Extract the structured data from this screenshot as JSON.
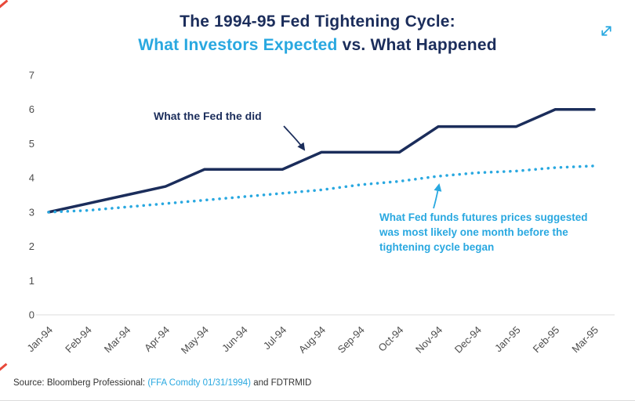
{
  "title": {
    "line1": "The 1994-95 Fed Tightening Cycle:",
    "line2_highlight": "What Investors Expected",
    "line2_rest": " vs. What Happened"
  },
  "colors": {
    "navy": "#1b2d5b",
    "blue": "#29a8e0",
    "tick_text": "#4d4d4d",
    "source_text": "#333333",
    "red_mark": "#e8493a",
    "axis_line": "#dcdcdc"
  },
  "icons": {
    "expand": "expand-arrows-icon"
  },
  "annotations": {
    "fed": "What the Fed the did",
    "futures_line1": "What Fed funds futures prices suggested",
    "futures_line2": "was most likely one month before the",
    "futures_line3": "tightening cycle began"
  },
  "source": {
    "prefix": "Source: Bloomberg Professional: ",
    "link": "(FFA Comdty 01/31/1994)",
    "suffix": " and FDTRMID"
  },
  "chart_data": {
    "type": "line",
    "title": "The 1994-95 Fed Tightening Cycle: What Investors Expected vs. What Happened",
    "categories": [
      "Jan-94",
      "Feb-94",
      "Mar-94",
      "Apr-94",
      "May-94",
      "Jun-94",
      "Jul-94",
      "Aug-94",
      "Sep-94",
      "Oct-94",
      "Nov-94",
      "Dec-94",
      "Jan-95",
      "Feb-95",
      "Mar-95"
    ],
    "series": [
      {
        "id": "fed-actual",
        "name": "What the Fed the did",
        "style": "solid",
        "color": "#1b2d5b",
        "values": [
          3.0,
          3.25,
          3.5,
          3.75,
          4.25,
          4.25,
          4.25,
          4.75,
          4.75,
          4.75,
          5.5,
          5.5,
          5.5,
          6.0,
          6.0
        ]
      },
      {
        "id": "futures-expected",
        "name": "What Fed funds futures prices suggested was most likely one month before the tightening cycle began",
        "style": "dotted",
        "color": "#29a8e0",
        "values": [
          3.0,
          3.05,
          3.15,
          3.25,
          3.35,
          3.45,
          3.55,
          3.65,
          3.8,
          3.9,
          4.05,
          4.15,
          4.2,
          4.3,
          4.35
        ]
      }
    ],
    "xlabel": "",
    "ylabel": "",
    "ylim": [
      0,
      7
    ],
    "ytick_step": 1,
    "grid": false,
    "x_label_rotation": -45,
    "legend_position": "annotations-on-plot"
  }
}
